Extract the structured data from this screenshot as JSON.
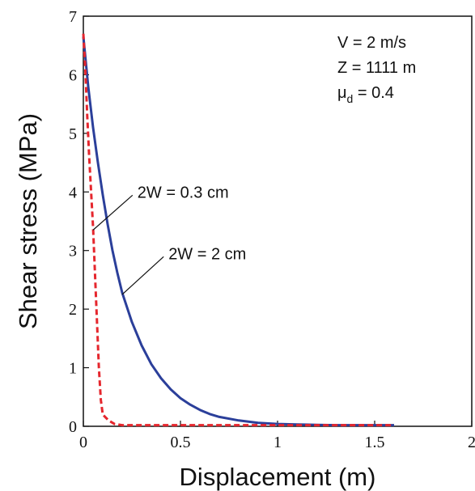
{
  "chart_data": {
    "type": "line",
    "xlabel": "Displacement (m)",
    "ylabel": "Shear stress (MPa)",
    "xlim": [
      0,
      2
    ],
    "ylim": [
      0,
      7
    ],
    "x_ticks": [
      "0",
      "0.5",
      "1",
      "1.5",
      "2"
    ],
    "y_ticks": [
      "0",
      "1",
      "2",
      "3",
      "4",
      "5",
      "6",
      "7"
    ],
    "grid": false,
    "legend": "none",
    "params": {
      "velocity": "V = 2 m/s",
      "depth": "Z = 1111 m",
      "mu_symbol": "μ",
      "mu_sub": "d",
      "mu_value": " = 0.4"
    },
    "annotations": [
      {
        "text": "2W = 0.3 cm",
        "series": 1,
        "point": [
          0.05,
          3.35
        ],
        "text_at": [
          0.27,
          4.0
        ]
      },
      {
        "text": "2W = 2 cm",
        "series": 0,
        "point": [
          0.2,
          2.25
        ],
        "text_at": [
          0.43,
          2.95
        ]
      }
    ],
    "series": [
      {
        "color": "#2b3f9a",
        "dash": "solid",
        "x": [
          0,
          0.025,
          0.05,
          0.075,
          0.1,
          0.125,
          0.15,
          0.175,
          0.2,
          0.25,
          0.3,
          0.35,
          0.4,
          0.45,
          0.5,
          0.55,
          0.6,
          0.65,
          0.7,
          0.8,
          0.9,
          1.0,
          1.1,
          1.2,
          1.3,
          1.4,
          1.5,
          1.6
        ],
        "y": [
          6.65,
          5.8,
          5.1,
          4.5,
          3.95,
          3.45,
          3.0,
          2.62,
          2.28,
          1.78,
          1.38,
          1.06,
          0.82,
          0.63,
          0.48,
          0.37,
          0.28,
          0.21,
          0.16,
          0.1,
          0.06,
          0.04,
          0.03,
          0.025,
          0.02,
          0.02,
          0.02,
          0.02
        ]
      },
      {
        "color": "#e5262d",
        "dash": "dashed",
        "x": [
          0,
          0.01,
          0.02,
          0.03,
          0.04,
          0.05,
          0.06,
          0.07,
          0.08,
          0.09,
          0.1,
          0.13,
          0.16,
          0.2,
          0.3,
          0.5,
          0.8,
          1.0,
          1.2,
          1.4,
          1.6
        ],
        "y": [
          6.7,
          6.1,
          5.3,
          4.6,
          4.0,
          3.4,
          2.6,
          1.8,
          1.0,
          0.45,
          0.2,
          0.1,
          0.04,
          0.02,
          0.02,
          0.02,
          0.02,
          0.02,
          0.02,
          0.02,
          0.02
        ]
      }
    ]
  }
}
